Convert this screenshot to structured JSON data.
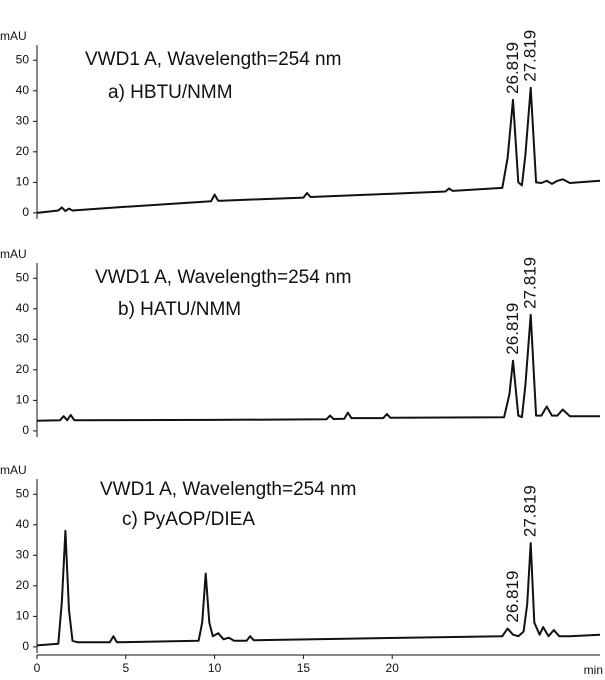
{
  "chart_data": [
    {
      "type": "line",
      "title": "VWD1 A, Wavelength=254 nm",
      "subtitle": "a) HBTU/NMM",
      "ylabel": "mAU",
      "xlim": [
        0,
        31.7
      ],
      "ylim": [
        -2,
        55
      ],
      "yticks": [
        0,
        10,
        20,
        30,
        40,
        50
      ],
      "annotations": [
        {
          "label": "26.819",
          "x": 26.819
        },
        {
          "label": "27.819",
          "x": 27.819
        }
      ],
      "series": [
        {
          "color": "#111111",
          "x": [
            0,
            1.2,
            1.4,
            1.6,
            1.8,
            2,
            5,
            9.8,
            10,
            10.2,
            10.4,
            15,
            15.2,
            15.4,
            20,
            23,
            23.2,
            23.4,
            26.2,
            26.5,
            26.8,
            27.1,
            27.3,
            27.5,
            27.8,
            28.1,
            28.4,
            28.7,
            29,
            29.3,
            29.6,
            30,
            31.7
          ],
          "values": [
            0,
            0.8,
            1.8,
            0.6,
            1.4,
            0.8,
            2,
            3.8,
            6,
            4,
            4,
            5,
            6.5,
            5.2,
            6.3,
            7,
            8,
            7.2,
            8.2,
            18,
            37,
            10,
            9,
            19,
            41,
            10,
            9.8,
            10.5,
            9.5,
            10.5,
            11,
            9.8,
            10.5
          ]
        }
      ]
    },
    {
      "type": "line",
      "title": "VWD1 A, Wavelength=254 nm",
      "subtitle": "b) HATU/NMM",
      "ylabel": "mAU",
      "xlim": [
        0,
        31.7
      ],
      "ylim": [
        -2,
        55
      ],
      "yticks": [
        0,
        10,
        20,
        30,
        40,
        50
      ],
      "annotations": [
        {
          "label": "26.819",
          "x": 26.819
        },
        {
          "label": "27.819",
          "x": 27.819
        }
      ],
      "series": [
        {
          "color": "#111111",
          "x": [
            0,
            1.3,
            1.5,
            1.7,
            1.9,
            2.1,
            10,
            16.3,
            16.5,
            16.7,
            17.3,
            17.5,
            17.7,
            19.5,
            19.7,
            19.9,
            26.3,
            26.6,
            26.8,
            27.1,
            27.3,
            27.5,
            27.8,
            28.1,
            28.4,
            28.7,
            29,
            29.3,
            29.6,
            30,
            31.7
          ],
          "values": [
            3.3,
            3.5,
            4.8,
            3.5,
            5.2,
            3.5,
            3.6,
            3.8,
            5,
            3.9,
            4,
            6,
            4.2,
            4.2,
            5.5,
            4.3,
            4.5,
            12,
            23,
            5,
            4.5,
            15,
            38,
            5,
            5,
            8,
            5,
            5,
            7,
            4.8,
            4.8
          ]
        }
      ]
    },
    {
      "type": "line",
      "title": "VWD1 A, Wavelength=254 nm",
      "subtitle": "c) PyAOP/DIEA",
      "ylabel": "mAU",
      "xlim": [
        0,
        31.7
      ],
      "ylim": [
        -2,
        55
      ],
      "xlabel": "min",
      "xticks": [
        0,
        5,
        10,
        15,
        20
      ],
      "yticks": [
        0,
        10,
        20,
        30,
        40,
        50
      ],
      "annotations": [
        {
          "label": "26.819",
          "x": 26.819
        },
        {
          "label": "27.819",
          "x": 27.819
        }
      ],
      "series": [
        {
          "color": "#111111",
          "x": [
            0,
            1.2,
            1.4,
            1.6,
            1.8,
            2.0,
            2.3,
            4.1,
            4.3,
            4.5,
            9.1,
            9.3,
            9.5,
            9.7,
            9.9,
            10.2,
            10.5,
            10.8,
            11.1,
            11.8,
            12,
            12.2,
            26.2,
            26.5,
            26.8,
            27.1,
            27.4,
            27.6,
            27.8,
            28.0,
            28.3,
            28.5,
            28.8,
            29.1,
            29.4,
            30,
            31.7
          ],
          "values": [
            0.5,
            1,
            15,
            38,
            12,
            2,
            1.5,
            1.5,
            3.5,
            1.5,
            2,
            8,
            24,
            8,
            3.5,
            4.5,
            2.5,
            3,
            2,
            2,
            3.5,
            2.2,
            3.5,
            6,
            4,
            3.5,
            5,
            14,
            34,
            8,
            4,
            6.5,
            3.5,
            5.5,
            3.5,
            3.5,
            4
          ]
        }
      ]
    }
  ]
}
